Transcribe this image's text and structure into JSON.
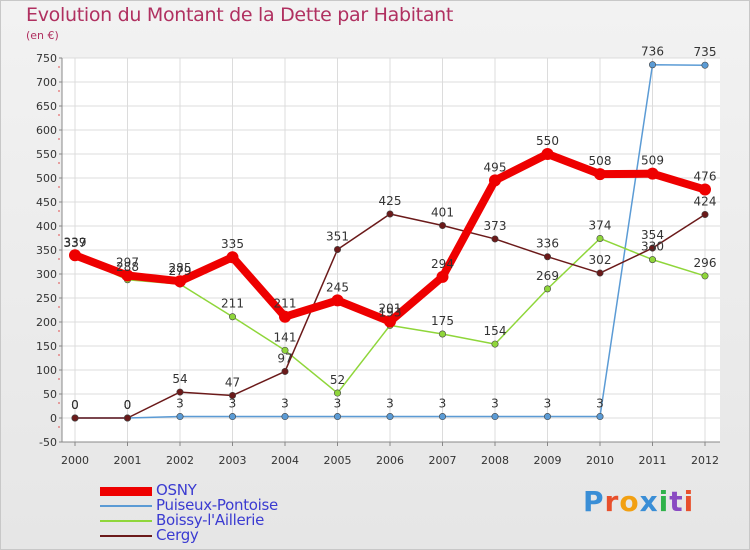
{
  "title": "Evolution du Montant de la Dette par Habitant",
  "unit": "(en €)",
  "logo": {
    "text": "Proxiti",
    "colors": [
      "#3a8ed6",
      "#e8502c",
      "#f2a012",
      "#3a8ed6",
      "#2fb24a",
      "#8a4bc2",
      "#e8502c"
    ]
  },
  "chart_data": {
    "type": "line",
    "title": "Evolution du Montant de la Dette par Habitant",
    "ylabel": "(en €)",
    "xlabel": "",
    "x": [
      "2000",
      "2001",
      "2002",
      "2003",
      "2004",
      "2005",
      "2006",
      "2007",
      "2008",
      "2009",
      "2010",
      "2011",
      "2012"
    ],
    "ylim": [
      -50,
      750
    ],
    "yticks": [
      -50,
      0,
      50,
      100,
      150,
      200,
      250,
      300,
      350,
      400,
      450,
      500,
      550,
      600,
      650,
      700,
      750
    ],
    "grid": true,
    "legend_position": "bottom-left",
    "series": [
      {
        "name": "OSNY",
        "color": "#ee0000",
        "values": [
          339,
          297,
          285,
          335,
          211,
          245,
          201,
          294,
          495,
          550,
          508,
          509,
          476
        ]
      },
      {
        "name": "Puiseux-Pontoise",
        "color": "#5b9bd5",
        "values": [
          0,
          0,
          3,
          3,
          3,
          3,
          3,
          3,
          3,
          3,
          3,
          736,
          735
        ]
      },
      {
        "name": "Boissy-l'Aillerie",
        "color": "#8fd63a",
        "values": [
          337,
          288,
          279,
          211,
          141,
          52,
          193,
          175,
          154,
          269,
          374,
          330,
          296
        ]
      },
      {
        "name": "Cergy",
        "color": "#6b1a1a",
        "values": [
          0,
          0,
          54,
          47,
          97,
          351,
          425,
          401,
          373,
          336,
          302,
          354,
          424
        ]
      }
    ]
  }
}
